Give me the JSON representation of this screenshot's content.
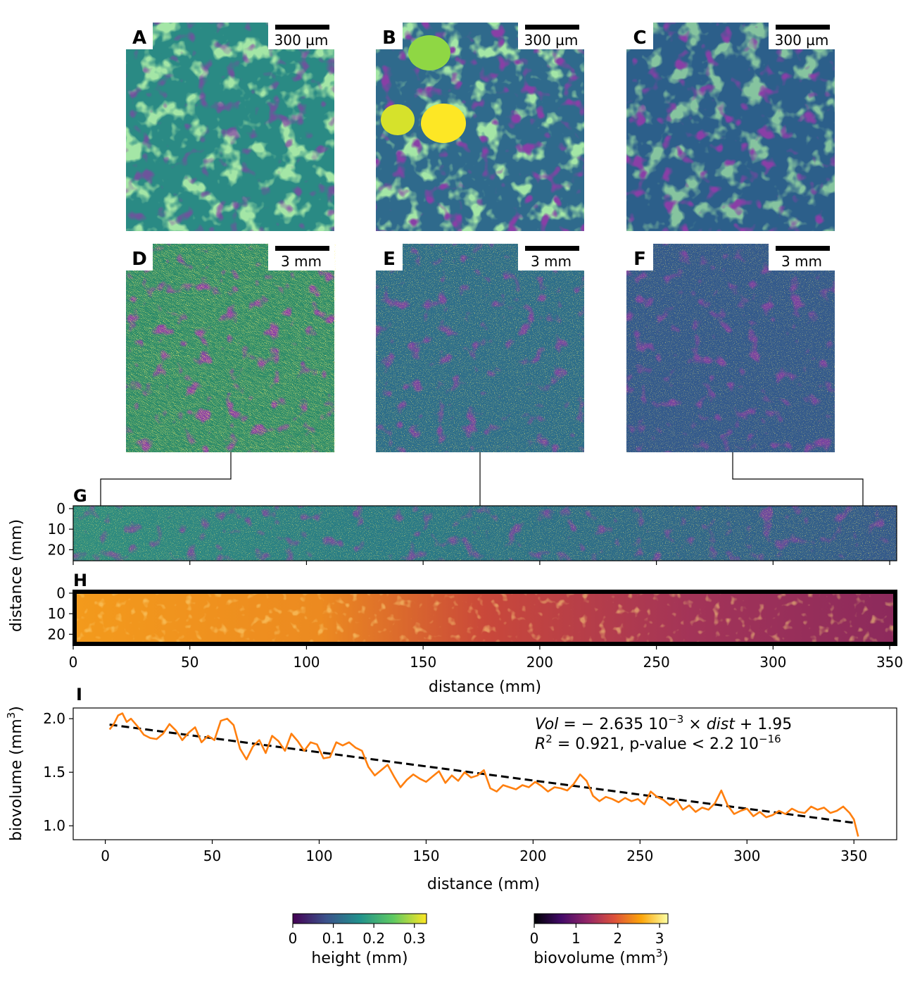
{
  "panels": {
    "top_row": [
      {
        "letter": "A",
        "scalebar": "300 µm"
      },
      {
        "letter": "B",
        "scalebar": "300 µm"
      },
      {
        "letter": "C",
        "scalebar": "300 µm"
      }
    ],
    "mid_row": [
      {
        "letter": "D",
        "scalebar": "3 mm"
      },
      {
        "letter": "E",
        "scalebar": "3 mm"
      },
      {
        "letter": "F",
        "scalebar": "3 mm"
      }
    ],
    "strip_g_letter": "G",
    "strip_h_letter": "H",
    "line_i_letter": "I"
  },
  "colors": {
    "line": "#ff7f0e",
    "fit": "#000000",
    "viridis": [
      "#440154",
      "#3b528b",
      "#21918c",
      "#5ec962",
      "#fde725"
    ],
    "inferno": [
      "#000004",
      "#420a68",
      "#932667",
      "#dd513a",
      "#fca50a",
      "#fcffa4"
    ]
  },
  "colorbars": {
    "height": {
      "label": "height (mm)",
      "ticks": [
        "0",
        "0.1",
        "0.2",
        "0.3"
      ],
      "tick_values": [
        0,
        0.1,
        0.2,
        0.3
      ],
      "range": [
        0,
        0.33
      ]
    },
    "biovolume": {
      "label": "biovolume (mm",
      "label_sup": "3",
      "label_end": ")",
      "ticks": [
        "0",
        "1",
        "2",
        "3"
      ],
      "tick_values": [
        0,
        1,
        2,
        3
      ],
      "range": [
        0,
        3.2
      ]
    }
  },
  "chart_data": [
    {
      "type": "heatmap",
      "panel": "G",
      "title": "",
      "ylabel": "distance (mm)",
      "xlim": [
        0,
        353
      ],
      "ylim": [
        0,
        24
      ],
      "yticks": [
        0,
        10,
        20
      ],
      "xticks": [
        0,
        50,
        100,
        150,
        200,
        250,
        300,
        350
      ],
      "colormap": "viridis",
      "value": "height (mm)"
    },
    {
      "type": "heatmap",
      "panel": "H",
      "ylabel": "distance (mm)",
      "xlabel": "distance (mm)",
      "xlim": [
        0,
        353
      ],
      "ylim": [
        0,
        24
      ],
      "yticks": [
        0,
        10,
        20
      ],
      "xticks": [
        0,
        50,
        100,
        150,
        200,
        250,
        300,
        350
      ],
      "xticklabels": [
        "0",
        "50",
        "100",
        "150",
        "200",
        "250",
        "300",
        "350"
      ],
      "colormap": "inferno",
      "value": "biovolume (mm3)"
    },
    {
      "type": "line",
      "panel": "I",
      "xlabel": "distance (mm)",
      "ylabel": "biovolume (mm",
      "ylabel_sup": "3",
      "ylabel_end": ")",
      "xlim": [
        -15,
        370
      ],
      "ylim": [
        0.87,
        2.1
      ],
      "xticks": [
        0,
        50,
        100,
        150,
        200,
        250,
        300,
        350
      ],
      "xticklabels": [
        "0",
        "50",
        "100",
        "150",
        "200",
        "250",
        "300",
        "350"
      ],
      "yticks": [
        1.0,
        1.5,
        2.0
      ],
      "yticklabels": [
        "1.0",
        "1.5",
        "2.0"
      ],
      "series": [
        {
          "name": "biovolume",
          "x": [
            2,
            4,
            6,
            8,
            10,
            12,
            15,
            18,
            21,
            24,
            27,
            30,
            33,
            36,
            39,
            42,
            45,
            48,
            51,
            54,
            57,
            60,
            63,
            66,
            69,
            72,
            75,
            78,
            81,
            84,
            87,
            90,
            93,
            96,
            99,
            102,
            105,
            108,
            111,
            114,
            117,
            120,
            123,
            126,
            129,
            132,
            135,
            138,
            141,
            144,
            147,
            150,
            153,
            156,
            159,
            162,
            165,
            168,
            171,
            174,
            177,
            180,
            183,
            186,
            189,
            192,
            195,
            198,
            201,
            204,
            207,
            210,
            213,
            216,
            219,
            222,
            225,
            228,
            231,
            234,
            237,
            240,
            243,
            246,
            249,
            252,
            255,
            258,
            261,
            264,
            267,
            270,
            273,
            276,
            279,
            282,
            285,
            288,
            291,
            294,
            297,
            300,
            303,
            306,
            309,
            312,
            315,
            318,
            321,
            324,
            327,
            330,
            333,
            336,
            339,
            342,
            345,
            348,
            350,
            352
          ],
          "y": [
            1.9,
            1.95,
            2.03,
            2.05,
            1.97,
            2.0,
            1.93,
            1.85,
            1.82,
            1.81,
            1.86,
            1.95,
            1.89,
            1.8,
            1.87,
            1.92,
            1.78,
            1.84,
            1.8,
            1.98,
            2.0,
            1.94,
            1.72,
            1.62,
            1.74,
            1.8,
            1.68,
            1.84,
            1.79,
            1.7,
            1.86,
            1.79,
            1.7,
            1.78,
            1.76,
            1.63,
            1.64,
            1.78,
            1.75,
            1.78,
            1.73,
            1.7,
            1.55,
            1.47,
            1.52,
            1.57,
            1.46,
            1.36,
            1.43,
            1.48,
            1.44,
            1.41,
            1.46,
            1.51,
            1.4,
            1.47,
            1.42,
            1.5,
            1.45,
            1.47,
            1.52,
            1.35,
            1.32,
            1.38,
            1.36,
            1.34,
            1.38,
            1.36,
            1.41,
            1.37,
            1.32,
            1.36,
            1.35,
            1.33,
            1.39,
            1.48,
            1.42,
            1.28,
            1.23,
            1.27,
            1.25,
            1.22,
            1.26,
            1.23,
            1.25,
            1.2,
            1.32,
            1.27,
            1.24,
            1.19,
            1.24,
            1.15,
            1.19,
            1.13,
            1.17,
            1.15,
            1.21,
            1.33,
            1.19,
            1.11,
            1.14,
            1.16,
            1.09,
            1.13,
            1.08,
            1.1,
            1.14,
            1.11,
            1.16,
            1.13,
            1.12,
            1.18,
            1.15,
            1.17,
            1.12,
            1.14,
            1.18,
            1.12,
            1.06,
            0.9
          ]
        },
        {
          "name": "linear fit",
          "style": "dashed",
          "slope": -0.002635,
          "intercept": 1.95,
          "x": [
            2,
            350
          ]
        }
      ],
      "annotation": {
        "vol": "Vol",
        "eq_text": " = − 2.635 10",
        "exp1": "−3",
        "times": " × ",
        "dist": "dist",
        "tail": " + 1.95",
        "r2": "R",
        "r2_sup": "2",
        "r2_text": " = 0.921, p-value < 2.2 10",
        "exp2": "−16"
      }
    }
  ]
}
